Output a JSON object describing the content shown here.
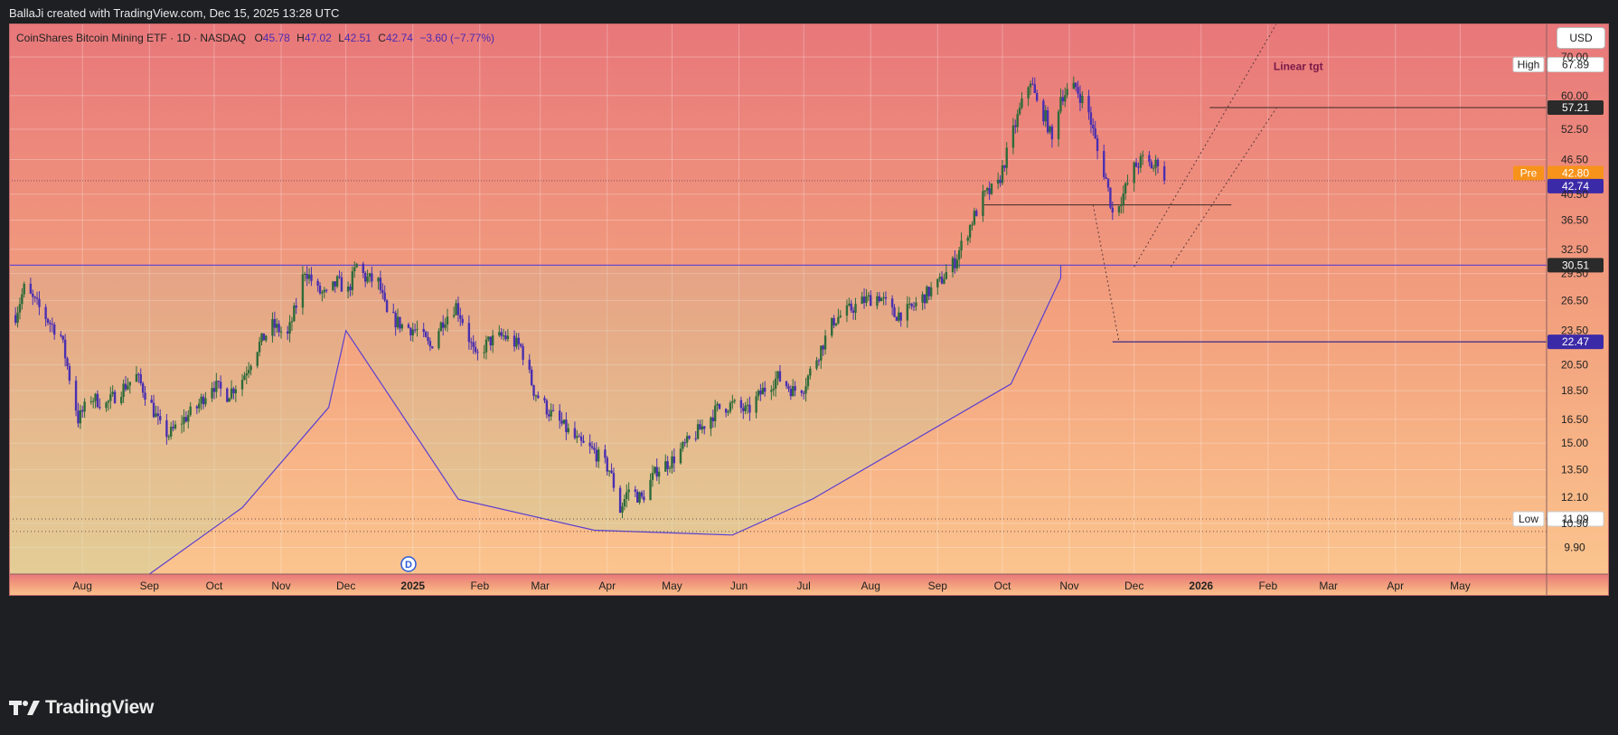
{
  "header": {
    "attribution": "BallaJi created with TradingView.com, Dec 15, 2025 13:28 UTC"
  },
  "legend": {
    "name": "CoinShares Bitcoin Mining ETF · 1D · NASDAQ",
    "o_label": "O",
    "o": "45.78",
    "h_label": "H",
    "h": "47.02",
    "l_label": "L",
    "l": "42.51",
    "c_label": "C",
    "c": "42.74",
    "change": "−3.60 (−7.77%)"
  },
  "currency_button": "USD",
  "footer": {
    "brand": "TradingView"
  },
  "colors": {
    "bg_top": "#e8777a",
    "bg_bottom": "#fbc48e",
    "up": "#2f6b3a",
    "down": "#4a2fb0",
    "accent": "#5b3fd0",
    "pre_badge": "#f7931a"
  },
  "chart_data": {
    "type": "candlestick",
    "y_scale": "log",
    "ylim": [
      8.9,
      80.0
    ],
    "y_ticks": [
      {
        "v": 70.0,
        "t": "70.00"
      },
      {
        "v": 60.0,
        "t": "60.00"
      },
      {
        "v": 52.5,
        "t": "52.50"
      },
      {
        "v": 46.5,
        "t": "46.50"
      },
      {
        "v": 40.5,
        "t": "40.50"
      },
      {
        "v": 36.5,
        "t": "36.50"
      },
      {
        "v": 32.5,
        "t": "32.50"
      },
      {
        "v": 29.5,
        "t": "29.50"
      },
      {
        "v": 26.5,
        "t": "26.50"
      },
      {
        "v": 23.5,
        "t": "23.50"
      },
      {
        "v": 20.5,
        "t": "20.50"
      },
      {
        "v": 18.5,
        "t": "18.50"
      },
      {
        "v": 16.5,
        "t": "16.50"
      },
      {
        "v": 15.0,
        "t": "15.00"
      },
      {
        "v": 13.5,
        "t": "13.50"
      },
      {
        "v": 12.1,
        "t": "12.10"
      },
      {
        "v": 10.9,
        "t": "10.90"
      },
      {
        "v": 9.9,
        "t": "9.90"
      }
    ],
    "x_ticks": [
      {
        "d": "2024-08-01",
        "t": "Aug",
        "bold": false
      },
      {
        "d": "2024-09-01",
        "t": "Sep",
        "bold": false
      },
      {
        "d": "2024-10-01",
        "t": "Oct",
        "bold": false
      },
      {
        "d": "2024-11-01",
        "t": "Nov",
        "bold": false
      },
      {
        "d": "2024-12-01",
        "t": "Dec",
        "bold": false
      },
      {
        "d": "2025-01-01",
        "t": "2025",
        "bold": true
      },
      {
        "d": "2025-02-01",
        "t": "Feb",
        "bold": false
      },
      {
        "d": "2025-03-01",
        "t": "Mar",
        "bold": false
      },
      {
        "d": "2025-04-01",
        "t": "Apr",
        "bold": false
      },
      {
        "d": "2025-05-01",
        "t": "May",
        "bold": false
      },
      {
        "d": "2025-06-01",
        "t": "Jun",
        "bold": false
      },
      {
        "d": "2025-07-01",
        "t": "Jul",
        "bold": false
      },
      {
        "d": "2025-08-01",
        "t": "Aug",
        "bold": false
      },
      {
        "d": "2025-09-01",
        "t": "Sep",
        "bold": false
      },
      {
        "d": "2025-10-01",
        "t": "Oct",
        "bold": false
      },
      {
        "d": "2025-11-01",
        "t": "Nov",
        "bold": false
      },
      {
        "d": "2025-12-01",
        "t": "Dec",
        "bold": false
      },
      {
        "d": "2026-01-01",
        "t": "2026",
        "bold": true
      },
      {
        "d": "2026-02-01",
        "t": "Feb",
        "bold": false
      },
      {
        "d": "2026-03-01",
        "t": "Mar",
        "bold": false
      },
      {
        "d": "2026-04-01",
        "t": "Apr",
        "bold": false
      },
      {
        "d": "2026-05-01",
        "t": "May",
        "bold": false
      }
    ],
    "price_path": [
      [
        "2024-07-01",
        25.0
      ],
      [
        "2024-07-05",
        27.8
      ],
      [
        "2024-07-11",
        26.0
      ],
      [
        "2024-07-16",
        24.5
      ],
      [
        "2024-07-22",
        23.0
      ],
      [
        "2024-07-26",
        19.5
      ],
      [
        "2024-07-30",
        16.5
      ],
      [
        "2024-08-05",
        18.0
      ],
      [
        "2024-08-12",
        17.5
      ],
      [
        "2024-08-19",
        18.6
      ],
      [
        "2024-08-26",
        19.6
      ],
      [
        "2024-09-02",
        17.4
      ],
      [
        "2024-09-06",
        16.0
      ],
      [
        "2024-09-10",
        15.5
      ],
      [
        "2024-09-16",
        16.4
      ],
      [
        "2024-09-23",
        17.3
      ],
      [
        "2024-09-30",
        19.0
      ],
      [
        "2024-10-07",
        18.2
      ],
      [
        "2024-10-14",
        19.4
      ],
      [
        "2024-10-21",
        22.0
      ],
      [
        "2024-10-28",
        24.0
      ],
      [
        "2024-11-04",
        23.0
      ],
      [
        "2024-11-08",
        26.0
      ],
      [
        "2024-11-12",
        30.0
      ],
      [
        "2024-11-18",
        27.5
      ],
      [
        "2024-11-22",
        27.0
      ],
      [
        "2024-11-27",
        28.5
      ],
      [
        "2024-12-02",
        27.5
      ],
      [
        "2024-12-06",
        30.5
      ],
      [
        "2024-12-10",
        29.0
      ],
      [
        "2024-12-16",
        28.5
      ],
      [
        "2024-12-20",
        25.0
      ],
      [
        "2024-12-27",
        24.0
      ],
      [
        "2025-01-03",
        23.5
      ],
      [
        "2025-01-09",
        22.0
      ],
      [
        "2025-01-15",
        24.5
      ],
      [
        "2025-01-21",
        26.0
      ],
      [
        "2025-01-25",
        24.0
      ],
      [
        "2025-01-30",
        21.0
      ],
      [
        "2025-02-05",
        22.5
      ],
      [
        "2025-02-12",
        23.0
      ],
      [
        "2025-02-20",
        22.0
      ],
      [
        "2025-02-26",
        18.5
      ],
      [
        "2025-03-05",
        17.0
      ],
      [
        "2025-03-12",
        16.0
      ],
      [
        "2025-03-19",
        15.0
      ],
      [
        "2025-03-26",
        14.5
      ],
      [
        "2025-04-02",
        13.5
      ],
      [
        "2025-04-07",
        11.5
      ],
      [
        "2025-04-11",
        12.5
      ],
      [
        "2025-04-17",
        12.0
      ],
      [
        "2025-04-24",
        13.5
      ],
      [
        "2025-05-01",
        14.0
      ],
      [
        "2025-05-08",
        15.0
      ],
      [
        "2025-05-15",
        16.0
      ],
      [
        "2025-05-22",
        17.2
      ],
      [
        "2025-05-29",
        17.5
      ],
      [
        "2025-06-05",
        17.0
      ],
      [
        "2025-06-12",
        18.5
      ],
      [
        "2025-06-19",
        19.5
      ],
      [
        "2025-06-26",
        18.5
      ],
      [
        "2025-07-01",
        18.8
      ],
      [
        "2025-07-08",
        21.5
      ],
      [
        "2025-07-15",
        24.5
      ],
      [
        "2025-07-22",
        25.5
      ],
      [
        "2025-07-29",
        26.5
      ],
      [
        "2025-08-05",
        27.0
      ],
      [
        "2025-08-12",
        25.0
      ],
      [
        "2025-08-19",
        25.5
      ],
      [
        "2025-08-26",
        27.0
      ],
      [
        "2025-09-02",
        28.5
      ],
      [
        "2025-09-09",
        31.0
      ],
      [
        "2025-09-15",
        35.0
      ],
      [
        "2025-09-22",
        40.0
      ],
      [
        "2025-09-29",
        42.0
      ],
      [
        "2025-10-03",
        47.5
      ],
      [
        "2025-10-08",
        55.0
      ],
      [
        "2025-10-14",
        64.0
      ],
      [
        "2025-10-17",
        58.0
      ],
      [
        "2025-10-21",
        55.0
      ],
      [
        "2025-10-24",
        50.0
      ],
      [
        "2025-10-28",
        60.0
      ],
      [
        "2025-11-04",
        62.0
      ],
      [
        "2025-11-10",
        56.0
      ],
      [
        "2025-11-14",
        48.0
      ],
      [
        "2025-11-18",
        43.0
      ],
      [
        "2025-11-21",
        37.5
      ],
      [
        "2025-11-26",
        40.5
      ],
      [
        "2025-12-01",
        45.0
      ],
      [
        "2025-12-05",
        46.5
      ],
      [
        "2025-12-10",
        45.0
      ],
      [
        "2025-12-12",
        46.3
      ],
      [
        "2025-12-15",
        42.74
      ]
    ],
    "price_levels": [
      {
        "v": 67.89,
        "t": "67.89",
        "tag": "High",
        "style": "tag-light"
      },
      {
        "v": 57.21,
        "t": "57.21",
        "tag": "",
        "style": "dark"
      },
      {
        "v": 42.8,
        "t": "42.80",
        "tag": "Pre",
        "style": "orange"
      },
      {
        "v": 42.74,
        "t": "42.74",
        "tag": "",
        "style": "accent"
      },
      {
        "v": 30.51,
        "t": "30.51",
        "tag": "",
        "style": "dark"
      },
      {
        "v": 22.47,
        "t": "22.47",
        "tag": "",
        "style": "accent"
      },
      {
        "v": 11.09,
        "t": "11.09",
        "tag": "Low",
        "style": "tag-light"
      }
    ],
    "annotations": {
      "linear_target_label": "Linear tgt",
      "earnings_marker": "D",
      "earnings_date": "2024-12-30"
    }
  }
}
